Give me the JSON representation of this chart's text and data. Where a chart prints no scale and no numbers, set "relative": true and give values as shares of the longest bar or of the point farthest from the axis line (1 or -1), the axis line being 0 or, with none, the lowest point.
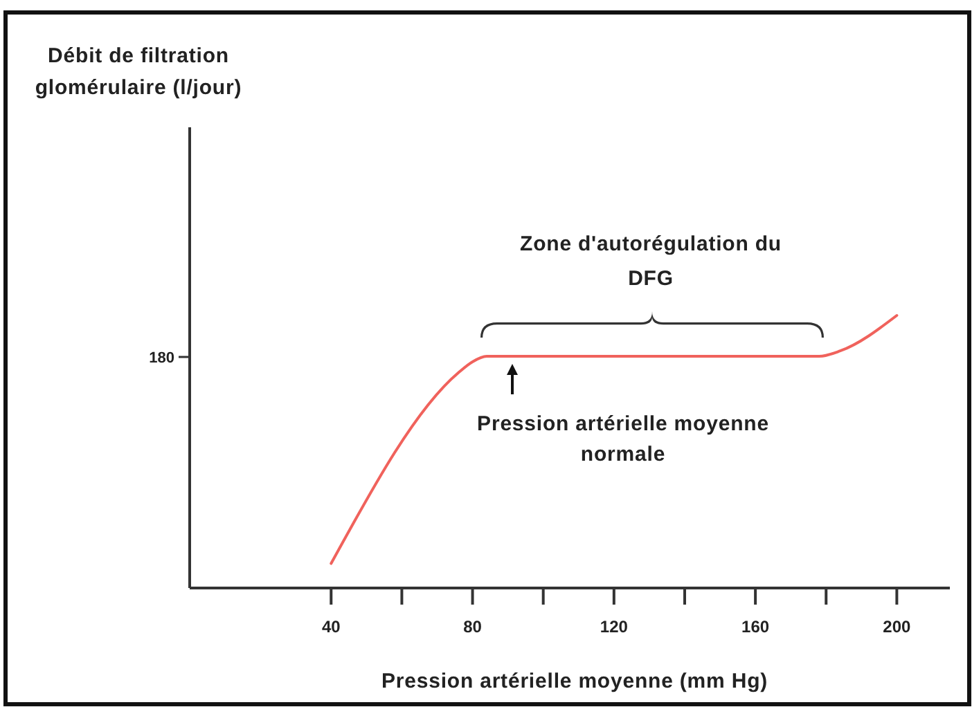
{
  "chart_data": {
    "type": "line",
    "relative": true,
    "xlabel": "Pression artérielle moyenne (mm Hg)",
    "xlim": [
      0,
      215
    ],
    "xticks": [
      40,
      {
        "value": 60,
        "label": null
      },
      80,
      {
        "value": 100,
        "label": null
      },
      120,
      {
        "value": 140,
        "label": null
      },
      160,
      {
        "value": 180,
        "label": null
      },
      200
    ],
    "series": [
      {
        "color": "#f0625c",
        "x": [
          40,
          76,
          80,
          84,
          178,
          184,
          200
        ],
        "values": [
          0.09,
          0.79,
          0.83,
          0.85,
          0.85,
          0.87,
          1
        ]
      }
    ],
    "annotations": [
      "180",
      "Zone d'autorégulation du DFG",
      "Pression artérielle moyenne normale",
      "Débit de filtration glomérulaire (l/jour)"
    ],
    "marker": "none",
    "line_style": "solid"
  }
}
